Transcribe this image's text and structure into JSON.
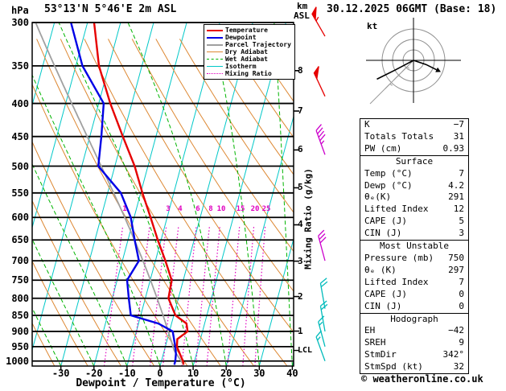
{
  "header": {
    "pressure_unit": "hPa",
    "station": "53°13'N 5°46'E 2m ASL",
    "km_label": "km",
    "asl_label": "ASL",
    "datetime": "30.12.2025 06GMT (Base: 18)"
  },
  "axes": {
    "pressure_ticks_hpa": [
      300,
      350,
      400,
      450,
      500,
      550,
      600,
      650,
      700,
      750,
      800,
      850,
      900,
      950,
      1000
    ],
    "temp_ticks_c": [
      -30,
      -20,
      -10,
      0,
      10,
      20,
      30,
      40
    ],
    "x_title": "Dewpoint / Temperature (°C)",
    "mixing_axis_label": "Mixing Ratio (g/kg)",
    "mixing_ratio_labels_gkg": [
      1,
      3,
      4,
      6,
      8,
      10,
      15,
      20,
      25
    ],
    "km_ticks": [
      {
        "km": 8,
        "p": 356
      },
      {
        "km": 7,
        "p": 411
      },
      {
        "km": 6,
        "p": 472
      },
      {
        "km": 5,
        "p": 540
      },
      {
        "km": 4,
        "p": 616
      },
      {
        "km": 3,
        "p": 701
      },
      {
        "km": 2,
        "p": 795
      },
      {
        "km": 1,
        "p": 899
      }
    ],
    "lcl_label": "LCL"
  },
  "legend": [
    {
      "label": "Temperature",
      "color": "#e60000",
      "line_style": "solid",
      "weight": 2
    },
    {
      "label": "Dewpoint",
      "color": "#0000e6",
      "line_style": "solid",
      "weight": 2
    },
    {
      "label": "Parcel Trajectory",
      "color": "#a0a0a0",
      "line_style": "solid",
      "weight": 2
    },
    {
      "label": "Dry Adiabat",
      "color": "#dd8833",
      "line_style": "solid",
      "weight": 1
    },
    {
      "label": "Wet Adiabat",
      "color": "#00b400",
      "line_style": "dashed",
      "weight": 1
    },
    {
      "label": "Isotherm",
      "color": "#00c8c8",
      "line_style": "solid",
      "weight": 1
    },
    {
      "label": "Mixing Ratio",
      "color": "#e000c0",
      "line_style": "dotted",
      "weight": 1
    }
  ],
  "hodograph": {
    "unit_label": "kt",
    "ring_spacing_kt": 10,
    "rings_kt": [
      10,
      20,
      30
    ]
  },
  "table": {
    "sections": [
      {
        "header": null,
        "rows": [
          [
            "K",
            "−7"
          ],
          [
            "Totals Totals",
            "31"
          ],
          [
            "PW (cm)",
            "0.93"
          ]
        ]
      },
      {
        "header": "Surface",
        "rows": [
          [
            "Temp (°C)",
            "7"
          ],
          [
            "Dewp (°C)",
            "4.2"
          ],
          [
            "θₑ(K)",
            "291"
          ],
          [
            "Lifted Index",
            "12"
          ],
          [
            "CAPE (J)",
            "5"
          ],
          [
            "CIN (J)",
            "3"
          ]
        ]
      },
      {
        "header": "Most Unstable",
        "rows": [
          [
            "Pressure (mb)",
            "750"
          ],
          [
            "θₑ (K)",
            "297"
          ],
          [
            "Lifted Index",
            "7"
          ],
          [
            "CAPE (J)",
            "0"
          ],
          [
            "CIN (J)",
            "0"
          ]
        ]
      },
      {
        "header": "Hodograph",
        "rows": [
          [
            "EH",
            "−42"
          ],
          [
            "SREH",
            "9"
          ],
          [
            "StmDir",
            "342°"
          ],
          [
            "StmSpd (kt)",
            "32"
          ]
        ]
      }
    ]
  },
  "footer": {
    "copyright": "© weatheronline.co.uk"
  },
  "colors": {
    "temperature": "#e60000",
    "dewpoint": "#0000e6",
    "parcel": "#a0a0a0",
    "dry_adiabat": "#dd8833",
    "wet_adiabat": "#00b400",
    "isotherm": "#00c8c8",
    "mixing_ratio": "#e000c0",
    "pressure_line": "#000000",
    "barb_upper": "#e60000",
    "barb_mid": "#cc00cc",
    "barb_low": "#00bbbb"
  },
  "chart_data": {
    "type": "skewt-logp",
    "pressure_axis_range_hpa": [
      300,
      1018
    ],
    "temp_axis_range_c_at_surface": [
      -38,
      41
    ],
    "isotherm_step_c": 10,
    "dry_adiabat_step_k": 10,
    "wet_adiabat_step_c": 10,
    "mixing_ratio_lines_gkg": [
      1,
      2,
      3,
      4,
      6,
      8,
      10,
      15,
      20,
      25
    ],
    "sounding": [
      {
        "p": 1013,
        "t": 7,
        "td": 4.2
      },
      {
        "p": 1000,
        "t": 6.5,
        "td": 4.2
      },
      {
        "p": 975,
        "t": 5,
        "td": 3.8
      },
      {
        "p": 950,
        "t": 3.5,
        "td": 3
      },
      {
        "p": 925,
        "t": 3,
        "td": 2
      },
      {
        "p": 900,
        "t": 5.5,
        "td": 1
      },
      {
        "p": 875,
        "t": 4.5,
        "td": -4
      },
      {
        "p": 850,
        "t": 0.5,
        "td": -13
      },
      {
        "p": 800,
        "t": -3,
        "td": -15
      },
      {
        "p": 750,
        "t": -3.5,
        "td": -17
      },
      {
        "p": 700,
        "t": -7,
        "td": -15
      },
      {
        "p": 650,
        "t": -11,
        "td": -18
      },
      {
        "p": 600,
        "t": -15,
        "td": -21
      },
      {
        "p": 550,
        "t": -19.5,
        "td": -26
      },
      {
        "p": 500,
        "t": -24,
        "td": -35
      },
      {
        "p": 450,
        "t": -30,
        "td": -36.5
      },
      {
        "p": 400,
        "t": -36.5,
        "td": -38.5
      },
      {
        "p": 350,
        "t": -43,
        "td": -48
      },
      {
        "p": 300,
        "t": -48,
        "td": -55
      }
    ],
    "parcel": {
      "surface_p_hpa": 1013,
      "surface_t_c": 7,
      "surface_td_c": 4.2
    },
    "wind_barbs": [
      {
        "p_hpa": 315,
        "speed_kt": 55,
        "dir_deg": 330,
        "color": "#e60000"
      },
      {
        "p_hpa": 390,
        "speed_kt": 50,
        "dir_deg": 335,
        "color": "#e60000"
      },
      {
        "p_hpa": 480,
        "speed_kt": 45,
        "dir_deg": 340,
        "color": "#cc00cc"
      },
      {
        "p_hpa": 700,
        "speed_kt": 30,
        "dir_deg": 345,
        "color": "#cc00cc"
      },
      {
        "p_hpa": 830,
        "speed_kt": 20,
        "dir_deg": 350,
        "color": "#00bbbb"
      },
      {
        "p_hpa": 900,
        "speed_kt": 20,
        "dir_deg": 350,
        "color": "#00bbbb"
      },
      {
        "p_hpa": 950,
        "speed_kt": 15,
        "dir_deg": 345,
        "color": "#00bbbb"
      },
      {
        "p_hpa": 1000,
        "speed_kt": 15,
        "dir_deg": 340,
        "color": "#00bbbb"
      }
    ],
    "hodograph_trace_kt": [
      {
        "u": -35,
        "v": -18
      },
      {
        "u": -17,
        "v": -9
      },
      {
        "u": 0,
        "v": 0
      },
      {
        "u": 12,
        "v": -4
      },
      {
        "u": 22,
        "v": -9
      }
    ],
    "indices": {
      "k_index": -7,
      "totals_totals": 31,
      "pw_cm": 0.93,
      "surface": {
        "temp_c": 7,
        "dewp_c": 4.2,
        "theta_e_k": 291,
        "lifted_index": 12,
        "cape_j": 5,
        "cin_j": 3
      },
      "most_unstable": {
        "pressure_mb": 750,
        "theta_e_k": 297,
        "lifted_index": 7,
        "cape_j": 0,
        "cin_j": 0
      },
      "hodograph": {
        "eh": -42,
        "sreh": 9,
        "stm_dir_deg": 342,
        "stm_spd_kt": 32
      }
    }
  }
}
